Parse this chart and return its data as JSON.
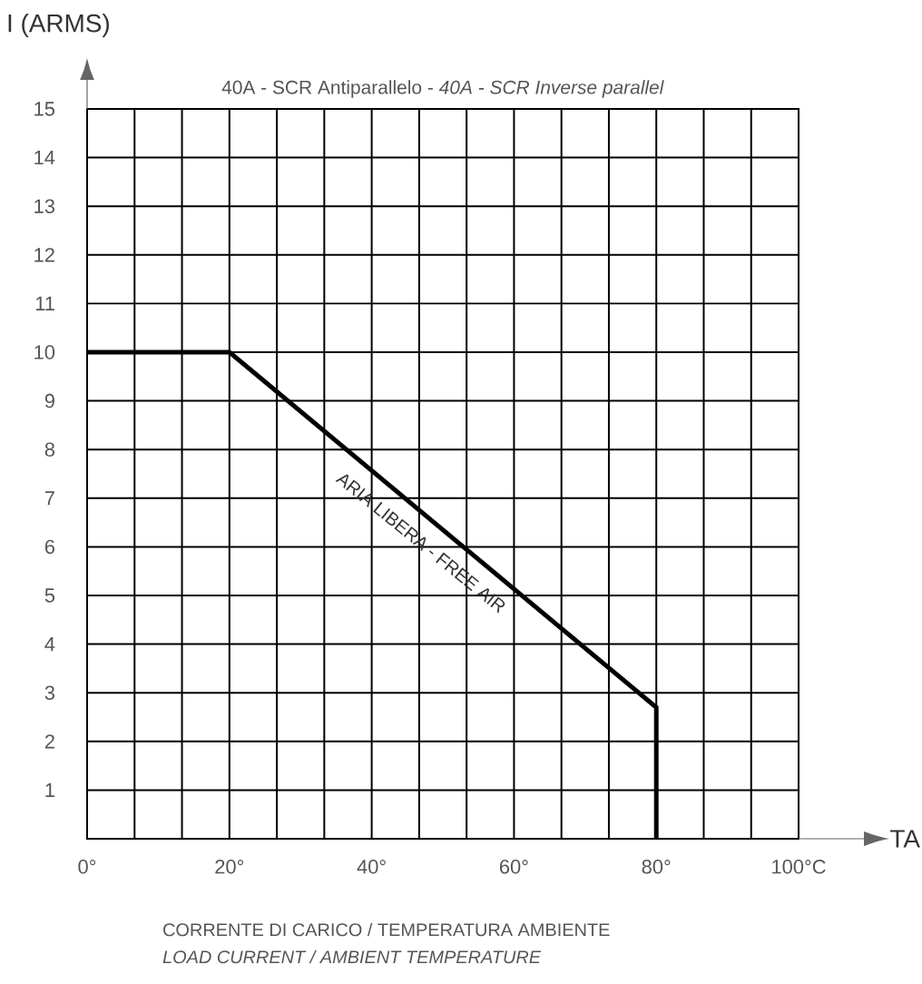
{
  "chart_data": {
    "type": "line",
    "title": "40A - SCR Antiparallelo - *40A - SCR Inverse parallel*",
    "xlabel": "TA",
    "ylabel": "I (ARMS)",
    "x": [
      0,
      20,
      80,
      80
    ],
    "values": [
      10,
      10,
      2.7,
      0
    ],
    "color": "#000000",
    "line_style": "solid",
    "xlim": [
      0,
      100
    ],
    "ylim": [
      0,
      15
    ],
    "xticks": [
      {
        "value": 0,
        "label": "0°"
      },
      {
        "value": 6.667,
        "label": null
      },
      {
        "value": 13.333,
        "label": null
      },
      {
        "value": 20,
        "label": "20°"
      },
      {
        "value": 26.667,
        "label": null
      },
      {
        "value": 33.333,
        "label": null
      },
      {
        "value": 40,
        "label": "40°"
      },
      {
        "value": 46.667,
        "label": null
      },
      {
        "value": 53.333,
        "label": null
      },
      {
        "value": 60,
        "label": "60°"
      },
      {
        "value": 66.667,
        "label": null
      },
      {
        "value": 73.333,
        "label": null
      },
      {
        "value": 80,
        "label": "80°"
      },
      {
        "value": 86.667,
        "label": null
      },
      {
        "value": 93.333,
        "label": null
      },
      {
        "value": 100,
        "label": "100°C"
      }
    ],
    "yticks": [
      1,
      2,
      3,
      4,
      5,
      6,
      7,
      8,
      9,
      10,
      11,
      12,
      13,
      14,
      15
    ],
    "grid": true,
    "annotations": [
      {
        "text": "ARIA LIBERA - FREE AIR",
        "x": 50,
        "y": 6.4
      },
      "CORRENTE DI CARICO / TEMPERATURA AMBIENTE",
      "LOAD CURRENT / AMBIENT TEMPERATURE"
    ]
  }
}
